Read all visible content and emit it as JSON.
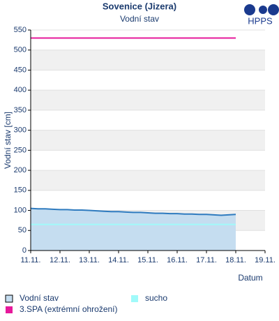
{
  "logo": "HPPS",
  "chart_data": {
    "type": "line",
    "title": "Sovenice (Jizera)",
    "subtitle": "Vodní stav",
    "ylabel": "Vodní stav [cm]",
    "xlabel": "Datum",
    "xlim": [
      11,
      19
    ],
    "xticks": [
      {
        "value": 11,
        "label": "11.11."
      },
      {
        "value": 12,
        "label": "12.11."
      },
      {
        "value": 13,
        "label": "13.11."
      },
      {
        "value": 14,
        "label": "14.11."
      },
      {
        "value": 15,
        "label": "15.11."
      },
      {
        "value": 16,
        "label": "16.11."
      },
      {
        "value": 17,
        "label": "17.11."
      },
      {
        "value": 18,
        "label": "18.11."
      },
      {
        "value": 19,
        "label": "19.11."
      }
    ],
    "ylim": [
      0,
      550
    ],
    "yticks": [
      0,
      50,
      100,
      150,
      200,
      250,
      300,
      350,
      400,
      450,
      500,
      550
    ],
    "grid": true,
    "banded": true,
    "series": [
      {
        "name": "Vodní stav",
        "color": "#2f7bbf",
        "fill": "#c5ddf0",
        "x": [
          11,
          11.25,
          11.5,
          11.75,
          12,
          12.25,
          12.5,
          12.75,
          13,
          13.25,
          13.5,
          13.75,
          14,
          14.25,
          14.5,
          14.75,
          15,
          15.25,
          15.5,
          15.75,
          16,
          16.25,
          16.5,
          16.75,
          17,
          17.25,
          17.5,
          17.75,
          18
        ],
        "values": [
          105,
          104,
          104,
          103,
          102,
          102,
          101,
          101,
          100,
          99,
          98,
          97,
          97,
          96,
          95,
          95,
          94,
          93,
          93,
          92,
          92,
          91,
          91,
          90,
          90,
          89,
          88,
          89,
          90
        ]
      },
      {
        "name": "sucho",
        "color": "#a0fafa",
        "x": [
          11,
          18
        ],
        "values": [
          65,
          65
        ]
      },
      {
        "name": "3.SPA (extrémní ohrožení)",
        "color": "#e6199b",
        "x": [
          11,
          18
        ],
        "values": [
          530,
          530
        ]
      }
    ]
  }
}
